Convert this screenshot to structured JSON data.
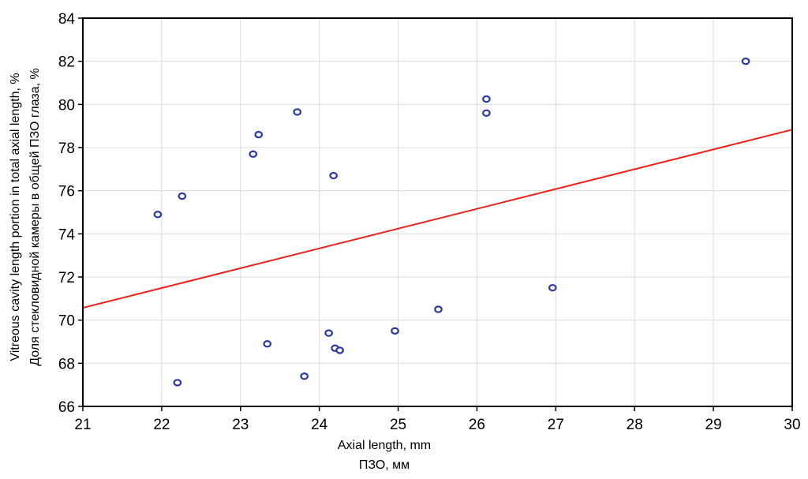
{
  "chart_data": {
    "type": "scatter",
    "xlabel": "Axial length, mm",
    "xlabel_ru": "ПЗО, мм",
    "ylabel": "Vitreous cavity length portion in total axial length, %",
    "ylabel_ru": "Доля стекловидной камеры в общей ПЗО глаза, %",
    "xlim": [
      21,
      30
    ],
    "ylim": [
      66,
      84
    ],
    "xticks": [
      21,
      22,
      23,
      24,
      25,
      26,
      27,
      28,
      29,
      30
    ],
    "yticks": [
      66,
      68,
      70,
      72,
      74,
      76,
      78,
      80,
      82,
      84
    ],
    "grid": true,
    "marker_color": "#2b3a9e",
    "line_color": "#e8231c",
    "points": [
      {
        "x": 21.95,
        "y": 74.9
      },
      {
        "x": 22.2,
        "y": 67.1
      },
      {
        "x": 22.26,
        "y": 75.75
      },
      {
        "x": 23.16,
        "y": 77.7
      },
      {
        "x": 23.23,
        "y": 78.6
      },
      {
        "x": 23.34,
        "y": 68.9
      },
      {
        "x": 23.72,
        "y": 79.65
      },
      {
        "x": 23.81,
        "y": 67.4
      },
      {
        "x": 24.12,
        "y": 69.4
      },
      {
        "x": 24.18,
        "y": 76.7
      },
      {
        "x": 24.2,
        "y": 68.7
      },
      {
        "x": 24.26,
        "y": 68.6
      },
      {
        "x": 24.96,
        "y": 69.5
      },
      {
        "x": 25.51,
        "y": 70.5
      },
      {
        "x": 26.12,
        "y": 80.25
      },
      {
        "x": 26.12,
        "y": 79.6
      },
      {
        "x": 26.96,
        "y": 71.5
      },
      {
        "x": 29.41,
        "y": 82.0
      }
    ],
    "trendline": {
      "x": [
        21,
        30
      ],
      "y": [
        70.57,
        78.83
      ]
    }
  }
}
